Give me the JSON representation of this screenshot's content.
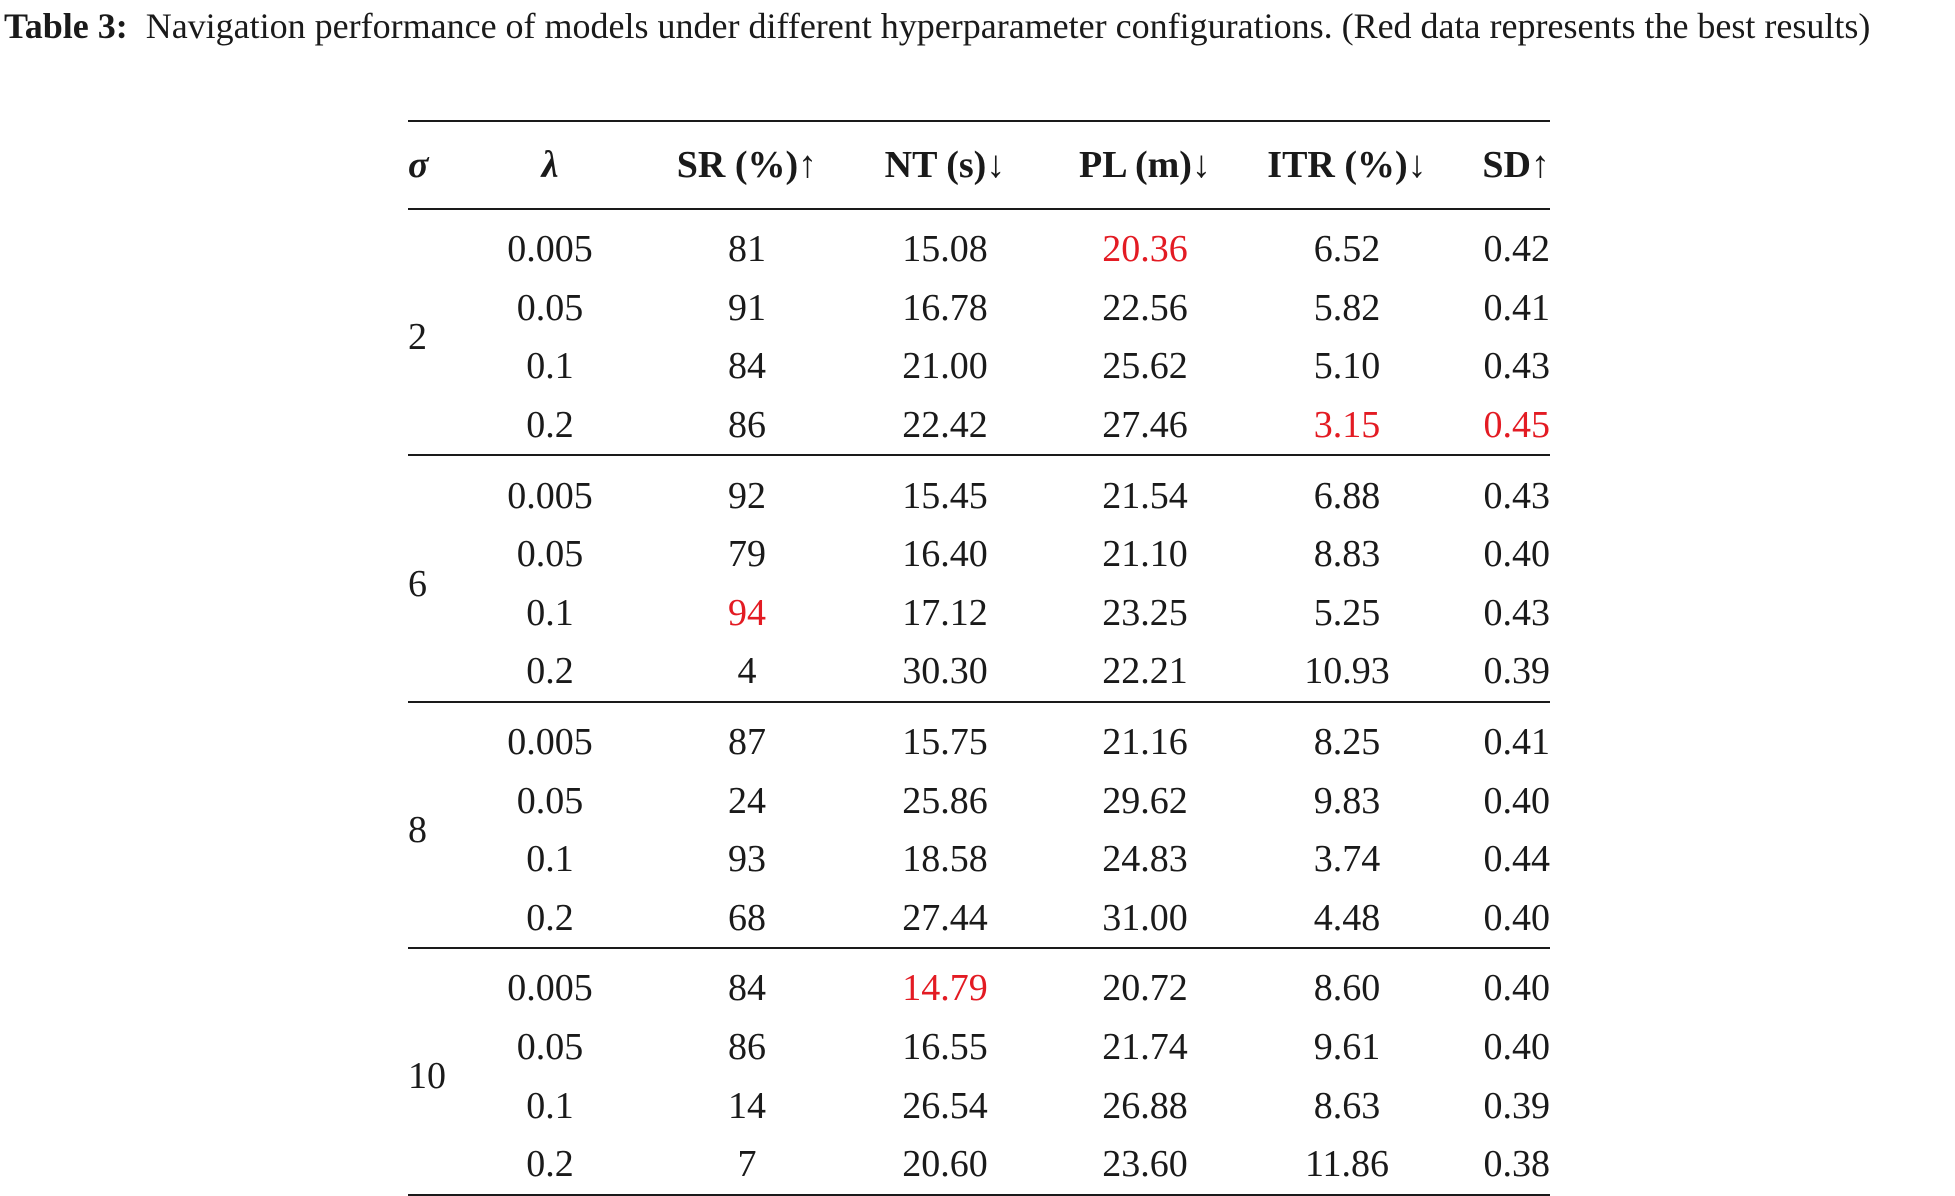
{
  "caption": {
    "label": "Table 3:",
    "text": "Navigation performance of models under different hyperparameter configurations. (Red data represents the best results)"
  },
  "table": {
    "headers": [
      "σ",
      "λ",
      "SR (%)↑",
      "NT (s)↓",
      "PL (m)↓",
      "ITR (%)↓",
      "SD↑"
    ],
    "highlight_color": "#e31b23",
    "groups": [
      {
        "sigma": "2",
        "rows": [
          {
            "lambda": "0.005",
            "sr": "81",
            "nt": "15.08",
            "pl": "20.36",
            "itr": "6.52",
            "sd": "0.42"
          },
          {
            "lambda": "0.05",
            "sr": "91",
            "nt": "16.78",
            "pl": "22.56",
            "itr": "5.82",
            "sd": "0.41"
          },
          {
            "lambda": "0.1",
            "sr": "84",
            "nt": "21.00",
            "pl": "25.62",
            "itr": "5.10",
            "sd": "0.43"
          },
          {
            "lambda": "0.2",
            "sr": "86",
            "nt": "22.42",
            "pl": "27.46",
            "itr": "3.15",
            "sd": "0.45"
          }
        ]
      },
      {
        "sigma": "6",
        "rows": [
          {
            "lambda": "0.005",
            "sr": "92",
            "nt": "15.45",
            "pl": "21.54",
            "itr": "6.88",
            "sd": "0.43"
          },
          {
            "lambda": "0.05",
            "sr": "79",
            "nt": "16.40",
            "pl": "21.10",
            "itr": "8.83",
            "sd": "0.40"
          },
          {
            "lambda": "0.1",
            "sr": "94",
            "nt": "17.12",
            "pl": "23.25",
            "itr": "5.25",
            "sd": "0.43"
          },
          {
            "lambda": "0.2",
            "sr": "4",
            "nt": "30.30",
            "pl": "22.21",
            "itr": "10.93",
            "sd": "0.39"
          }
        ]
      },
      {
        "sigma": "8",
        "rows": [
          {
            "lambda": "0.005",
            "sr": "87",
            "nt": "15.75",
            "pl": "21.16",
            "itr": "8.25",
            "sd": "0.41"
          },
          {
            "lambda": "0.05",
            "sr": "24",
            "nt": "25.86",
            "pl": "29.62",
            "itr": "9.83",
            "sd": "0.40"
          },
          {
            "lambda": "0.1",
            "sr": "93",
            "nt": "18.58",
            "pl": "24.83",
            "itr": "3.74",
            "sd": "0.44"
          },
          {
            "lambda": "0.2",
            "sr": "68",
            "nt": "27.44",
            "pl": "31.00",
            "itr": "4.48",
            "sd": "0.40"
          }
        ]
      },
      {
        "sigma": "10",
        "rows": [
          {
            "lambda": "0.005",
            "sr": "84",
            "nt": "14.79",
            "pl": "20.72",
            "itr": "8.60",
            "sd": "0.40"
          },
          {
            "lambda": "0.05",
            "sr": "86",
            "nt": "16.55",
            "pl": "21.74",
            "itr": "9.61",
            "sd": "0.40"
          },
          {
            "lambda": "0.1",
            "sr": "14",
            "nt": "26.54",
            "pl": "26.88",
            "itr": "8.63",
            "sd": "0.39"
          },
          {
            "lambda": "0.2",
            "sr": "7",
            "nt": "20.60",
            "pl": "23.60",
            "itr": "11.86",
            "sd": "0.38"
          }
        ]
      }
    ]
  }
}
